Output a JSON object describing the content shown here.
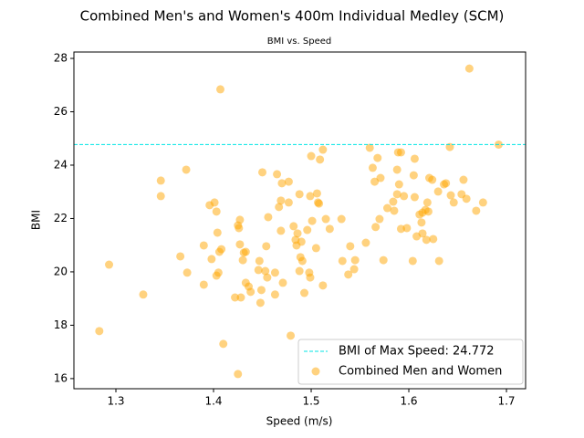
{
  "chart_data": {
    "type": "scatter",
    "title": "Combined Men's and Women's 400m Individual Medley (SCM)",
    "subtitle": "BMI vs. Speed",
    "x_label": "Speed (m/s)",
    "y_label": "BMI",
    "xlim": [
      1.257,
      1.7196
    ],
    "ylim": [
      15.62,
      28.24
    ],
    "xticks": [
      1.3,
      1.4,
      1.5,
      1.6,
      1.7
    ],
    "yticks": [
      16,
      18,
      20,
      22,
      24,
      26,
      28
    ],
    "reference_line": {
      "name": "BMI of Max Speed: 24.772",
      "value": 24.772,
      "color": "#00e5e5"
    },
    "legend": "lower right",
    "series": [
      {
        "name": "Combined Men and Women",
        "color": "orange",
        "x": [
          1.283,
          1.293,
          1.328,
          1.346,
          1.346,
          1.372,
          1.373,
          1.366,
          1.39,
          1.39,
          1.396,
          1.401,
          1.403,
          1.404,
          1.398,
          1.403,
          1.405,
          1.406,
          1.408,
          1.407,
          1.41,
          1.422,
          1.425,
          1.427,
          1.426,
          1.427,
          1.431,
          1.433,
          1.43,
          1.425,
          1.428,
          1.433,
          1.436,
          1.438,
          1.446,
          1.447,
          1.449,
          1.448,
          1.45,
          1.453,
          1.454,
          1.455,
          1.456,
          1.463,
          1.463,
          1.465,
          1.467,
          1.469,
          1.469,
          1.47,
          1.471,
          1.477,
          1.479,
          1.477,
          1.482,
          1.484,
          1.485,
          1.486,
          1.488,
          1.488,
          1.49,
          1.489,
          1.491,
          1.493,
          1.496,
          1.498,
          1.499,
          1.499,
          1.5,
          1.501,
          1.505,
          1.506,
          1.507,
          1.508,
          1.509,
          1.512,
          1.512,
          1.515,
          1.519,
          1.531,
          1.532,
          1.54,
          1.538,
          1.544,
          1.545,
          1.556,
          1.56,
          1.563,
          1.565,
          1.566,
          1.568,
          1.57,
          1.571,
          1.574,
          1.578,
          1.584,
          1.585,
          1.588,
          1.588,
          1.589,
          1.59,
          1.592,
          1.592,
          1.595,
          1.598,
          1.604,
          1.605,
          1.606,
          1.606,
          1.608,
          1.611,
          1.613,
          1.614,
          1.614,
          1.617,
          1.618,
          1.619,
          1.62,
          1.621,
          1.624,
          1.625,
          1.63,
          1.631,
          1.636,
          1.638,
          1.642,
          1.643,
          1.646,
          1.654,
          1.656,
          1.659,
          1.662,
          1.669,
          1.676,
          1.692
        ],
        "values": [
          17.78,
          20.27,
          19.15,
          23.42,
          22.84,
          23.83,
          19.97,
          20.58,
          19.52,
          20.99,
          22.5,
          22.6,
          22.26,
          21.47,
          20.48,
          19.86,
          19.97,
          20.75,
          20.85,
          26.84,
          17.3,
          19.04,
          21.74,
          21.95,
          21.64,
          21.03,
          20.72,
          20.75,
          20.44,
          16.17,
          19.04,
          19.59,
          19.45,
          19.25,
          20.07,
          20.41,
          19.32,
          18.84,
          23.73,
          20.03,
          20.96,
          19.79,
          22.05,
          19.97,
          19.15,
          23.66,
          22.43,
          22.67,
          21.54,
          23.32,
          19.59,
          23.38,
          17.61,
          22.6,
          21.71,
          21.2,
          20.99,
          21.44,
          22.91,
          20.03,
          21.13,
          20.55,
          20.41,
          19.21,
          21.57,
          19.97,
          19.79,
          22.84,
          24.34,
          21.91,
          20.89,
          22.94,
          22.6,
          22.56,
          24.21,
          24.58,
          19.49,
          21.98,
          21.61,
          21.98,
          20.41,
          20.96,
          19.9,
          20.1,
          20.44,
          21.09,
          24.65,
          23.9,
          23.38,
          21.68,
          24.27,
          21.98,
          23.52,
          20.44,
          22.39,
          22.63,
          22.29,
          23.83,
          22.91,
          24.48,
          23.28,
          24.48,
          21.61,
          22.84,
          21.64,
          20.41,
          23.62,
          24.24,
          22.8,
          21.33,
          22.15,
          21.85,
          21.44,
          22.22,
          22.32,
          21.2,
          22.6,
          22.26,
          23.52,
          23.45,
          21.23,
          23.01,
          20.41,
          23.28,
          23.32,
          24.68,
          22.87,
          22.6,
          22.91,
          23.45,
          22.74,
          27.62,
          22.29,
          22.6,
          24.77
        ]
      }
    ]
  }
}
